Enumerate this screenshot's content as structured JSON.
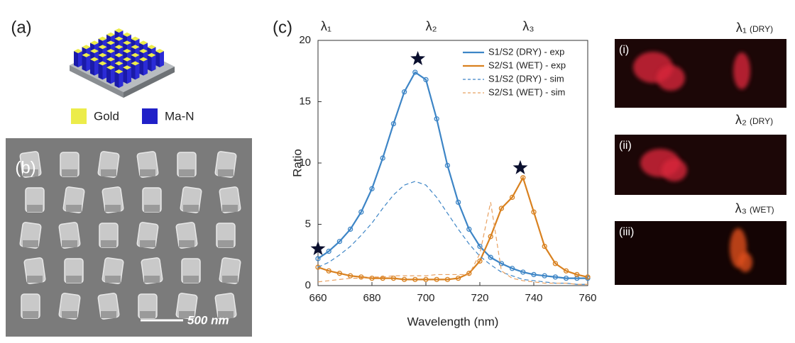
{
  "figure": {
    "panel_a": "(a)",
    "panel_b": "(b)",
    "panel_c": "(c)",
    "legend_gold": "Gold",
    "legend_man": "Ma-N",
    "scale_bar": "500 nm",
    "images": [
      {
        "label": "(i)",
        "lambda": "λ₁",
        "condition": "(DRY)"
      },
      {
        "label": "(ii)",
        "lambda": "λ₂",
        "condition": "(DRY)"
      },
      {
        "label": "(iii)",
        "lambda": "λ₃",
        "condition": "(WET)"
      }
    ]
  },
  "chart_data": {
    "type": "line",
    "xlabel": "Wavelength (nm)",
    "ylabel": "Ratio",
    "x": [
      660,
      664,
      668,
      672,
      676,
      680,
      684,
      688,
      692,
      696,
      700,
      704,
      708,
      712,
      716,
      720,
      724,
      728,
      732,
      736,
      740,
      744,
      748,
      752,
      756,
      760
    ],
    "series": [
      {
        "name": "S1/S2 (DRY) - exp",
        "color": "#3d85c6",
        "linestyle": "solid",
        "marker": "circle",
        "values": [
          2.2,
          2.8,
          3.6,
          4.6,
          6.0,
          7.9,
          10.4,
          13.2,
          15.8,
          17.4,
          16.8,
          13.6,
          9.8,
          6.8,
          4.6,
          3.2,
          2.3,
          1.8,
          1.4,
          1.1,
          0.9,
          0.8,
          0.7,
          0.6,
          0.6,
          0.6
        ]
      },
      {
        "name": "S2/S1 (WET) - exp",
        "color": "#d9811f",
        "linestyle": "solid",
        "marker": "circle",
        "values": [
          1.5,
          1.2,
          1.0,
          0.8,
          0.7,
          0.6,
          0.6,
          0.6,
          0.5,
          0.5,
          0.5,
          0.5,
          0.5,
          0.6,
          1.0,
          2.0,
          4.0,
          6.3,
          7.2,
          8.8,
          6.0,
          3.2,
          1.8,
          1.2,
          0.9,
          0.7
        ]
      },
      {
        "name": "S1/S2 (DRY) - sim",
        "color": "#3d85c6",
        "linestyle": "dashed",
        "marker": "none",
        "values": [
          1.5,
          1.9,
          2.5,
          3.2,
          4.1,
          5.1,
          6.3,
          7.4,
          8.2,
          8.5,
          8.2,
          7.2,
          5.9,
          4.6,
          3.4,
          2.4,
          1.7,
          1.1,
          0.8,
          0.5,
          0.4,
          0.3,
          0.2,
          0.2,
          0.1,
          0.1
        ]
      },
      {
        "name": "S2/S1 (WET) - sim",
        "color": "#e8a060",
        "linestyle": "dashed",
        "marker": "none",
        "values": [
          0.3,
          0.4,
          0.5,
          0.6,
          0.6,
          0.7,
          0.7,
          0.8,
          0.8,
          0.8,
          0.8,
          0.9,
          0.9,
          0.9,
          0.9,
          2.6,
          6.8,
          1.2,
          0.6,
          0.4,
          0.3,
          0.2,
          0.2,
          0.2,
          0.1,
          0.1
        ]
      }
    ],
    "stars": {
      "x": [
        660,
        697,
        735
      ],
      "y": [
        3.0,
        18.5,
        9.6
      ]
    },
    "top_labels": {
      "labels": [
        "λ₁",
        "λ₂",
        "λ₃"
      ],
      "x": [
        663,
        702,
        738
      ]
    },
    "xlim": [
      660,
      760
    ],
    "xticks": [
      660,
      680,
      700,
      720,
      740,
      760
    ],
    "ylim": [
      0,
      20
    ],
    "yticks": [
      0,
      5,
      10,
      15,
      20
    ],
    "legend": "upper right",
    "grid": false
  }
}
